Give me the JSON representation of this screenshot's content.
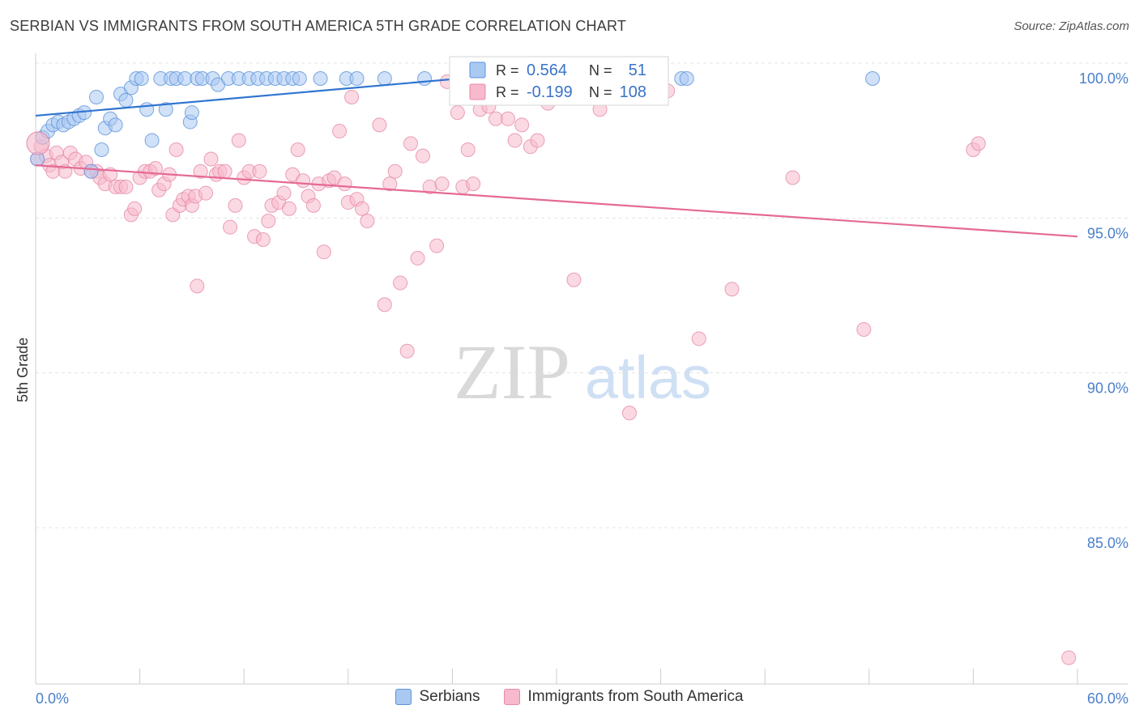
{
  "title": "SERBIAN VS IMMIGRANTS FROM SOUTH AMERICA 5TH GRADE CORRELATION CHART",
  "source": "Source: ZipAtlas.com",
  "watermark": {
    "zip": "ZIP",
    "atlas": "atlas"
  },
  "chart_data": {
    "type": "scatter",
    "xlabel": "",
    "ylabel": "5th Grade",
    "xlim": [
      0,
      60
    ],
    "ylim": [
      80.8,
      100.8
    ],
    "x_tick_labels": [
      {
        "value": 0,
        "label": "0.0%"
      },
      {
        "value": 60,
        "label": "60.0%"
      }
    ],
    "y_tick_labels": [
      {
        "value": 100,
        "label": "100.0%"
      },
      {
        "value": 95,
        "label": "95.0%"
      },
      {
        "value": 90,
        "label": "90.0%"
      },
      {
        "value": 85,
        "label": "85.0%"
      }
    ],
    "grid": true,
    "legend_box": [
      {
        "r_label": "R =",
        "r_value": "0.564",
        "n_label": "N =",
        "n_value": "51",
        "fill": "#a9c9f3",
        "stroke": "#5b93d9"
      },
      {
        "r_label": "R =",
        "r_value": "-0.199",
        "n_label": "N =",
        "n_value": "108",
        "fill": "#f7b9cc",
        "stroke": "#e58aa8"
      }
    ],
    "series": [
      {
        "name": "Serbians",
        "color_fill": "#a9c9f3",
        "color_stroke": "#5b93d9",
        "trend_color": "#2f74d0",
        "trend": {
          "x": [
            0,
            26.5
          ],
          "y": [
            98.8,
            100.1
          ]
        },
        "points": [
          [
            0.1,
            97.4
          ],
          [
            0.4,
            98.1
          ],
          [
            0.7,
            98.3
          ],
          [
            1.0,
            98.5
          ],
          [
            1.3,
            98.6
          ],
          [
            1.6,
            98.5
          ],
          [
            1.9,
            98.6
          ],
          [
            2.2,
            98.7
          ],
          [
            2.5,
            98.8
          ],
          [
            2.8,
            98.9
          ],
          [
            3.2,
            97.0
          ],
          [
            3.5,
            99.4
          ],
          [
            3.8,
            97.7
          ],
          [
            4.0,
            98.4
          ],
          [
            4.3,
            98.7
          ],
          [
            4.6,
            98.5
          ],
          [
            4.9,
            99.5
          ],
          [
            5.2,
            99.3
          ],
          [
            5.5,
            99.7
          ],
          [
            5.8,
            100.0
          ],
          [
            6.1,
            100.0
          ],
          [
            6.4,
            99.0
          ],
          [
            6.7,
            98.0
          ],
          [
            7.2,
            100.0
          ],
          [
            7.5,
            99.0
          ],
          [
            7.8,
            100.0
          ],
          [
            8.1,
            100.0
          ],
          [
            8.6,
            100.0
          ],
          [
            8.9,
            98.6
          ],
          [
            9.0,
            98.9
          ],
          [
            9.3,
            100.0
          ],
          [
            9.6,
            100.0
          ],
          [
            10.2,
            100.0
          ],
          [
            10.5,
            99.8
          ],
          [
            11.1,
            100.0
          ],
          [
            11.7,
            100.0
          ],
          [
            12.3,
            100.0
          ],
          [
            12.8,
            100.0
          ],
          [
            13.3,
            100.0
          ],
          [
            13.8,
            100.0
          ],
          [
            14.3,
            100.0
          ],
          [
            14.8,
            100.0
          ],
          [
            15.2,
            100.0
          ],
          [
            16.4,
            100.0
          ],
          [
            17.9,
            100.0
          ],
          [
            18.5,
            100.0
          ],
          [
            20.1,
            100.0
          ],
          [
            22.4,
            100.0
          ],
          [
            37.2,
            100.0
          ],
          [
            37.5,
            100.0
          ],
          [
            48.2,
            100.0
          ]
        ]
      },
      {
        "name": "Immigrants from South America",
        "color_fill": "#f7b9cc",
        "color_stroke": "#e58aa8",
        "trend_color": "#e56a94",
        "trend": {
          "x": [
            0,
            60
          ],
          "y": [
            97.2,
            94.9
          ]
        },
        "points": [
          [
            0.1,
            97.4
          ],
          [
            0.3,
            97.8
          ],
          [
            0.6,
            97.5
          ],
          [
            0.8,
            97.2
          ],
          [
            1.0,
            97.0
          ],
          [
            1.2,
            97.6
          ],
          [
            1.5,
            97.3
          ],
          [
            1.7,
            97.0
          ],
          [
            2.0,
            97.6
          ],
          [
            2.3,
            97.4
          ],
          [
            2.6,
            97.1
          ],
          [
            2.9,
            97.3
          ],
          [
            3.2,
            97.0
          ],
          [
            3.5,
            97.0
          ],
          [
            3.7,
            96.8
          ],
          [
            4.0,
            96.6
          ],
          [
            4.3,
            96.9
          ],
          [
            4.6,
            96.5
          ],
          [
            4.9,
            96.5
          ],
          [
            5.2,
            96.5
          ],
          [
            5.5,
            95.6
          ],
          [
            5.7,
            95.8
          ],
          [
            6.0,
            96.8
          ],
          [
            6.3,
            97.0
          ],
          [
            6.6,
            97.0
          ],
          [
            6.9,
            97.1
          ],
          [
            7.1,
            96.4
          ],
          [
            7.4,
            96.6
          ],
          [
            7.7,
            96.9
          ],
          [
            7.9,
            95.6
          ],
          [
            8.1,
            97.7
          ],
          [
            8.3,
            95.9
          ],
          [
            8.5,
            96.1
          ],
          [
            8.8,
            96.2
          ],
          [
            9.0,
            95.9
          ],
          [
            9.2,
            96.2
          ],
          [
            9.3,
            93.3
          ],
          [
            9.5,
            97.0
          ],
          [
            9.8,
            96.3
          ],
          [
            10.1,
            97.4
          ],
          [
            10.4,
            96.9
          ],
          [
            10.6,
            97.0
          ],
          [
            10.9,
            97.0
          ],
          [
            11.2,
            95.2
          ],
          [
            11.5,
            95.9
          ],
          [
            11.7,
            98.0
          ],
          [
            12.0,
            96.8
          ],
          [
            12.3,
            97.0
          ],
          [
            12.6,
            94.9
          ],
          [
            12.9,
            97.0
          ],
          [
            13.1,
            94.8
          ],
          [
            13.4,
            95.4
          ],
          [
            13.6,
            95.9
          ],
          [
            14.0,
            96.0
          ],
          [
            14.3,
            96.3
          ],
          [
            14.6,
            95.8
          ],
          [
            14.8,
            96.9
          ],
          [
            15.1,
            97.7
          ],
          [
            15.4,
            96.7
          ],
          [
            15.7,
            96.2
          ],
          [
            16.0,
            95.9
          ],
          [
            16.3,
            96.6
          ],
          [
            16.6,
            94.4
          ],
          [
            16.9,
            96.7
          ],
          [
            17.2,
            96.8
          ],
          [
            17.5,
            98.3
          ],
          [
            17.8,
            96.6
          ],
          [
            18.0,
            96.0
          ],
          [
            18.2,
            99.4
          ],
          [
            18.5,
            96.1
          ],
          [
            18.8,
            95.8
          ],
          [
            19.1,
            95.4
          ],
          [
            19.8,
            98.5
          ],
          [
            20.1,
            92.7
          ],
          [
            20.4,
            96.6
          ],
          [
            20.7,
            97.0
          ],
          [
            21.0,
            93.4
          ],
          [
            21.4,
            91.2
          ],
          [
            21.6,
            97.9
          ],
          [
            22.0,
            94.2
          ],
          [
            22.3,
            97.5
          ],
          [
            22.7,
            96.5
          ],
          [
            23.1,
            94.6
          ],
          [
            23.4,
            96.6
          ],
          [
            23.7,
            99.9
          ],
          [
            24.3,
            98.9
          ],
          [
            24.6,
            96.5
          ],
          [
            24.9,
            97.7
          ],
          [
            25.2,
            96.6
          ],
          [
            25.6,
            99.0
          ],
          [
            26.1,
            99.1
          ],
          [
            26.5,
            98.7
          ],
          [
            27.2,
            98.7
          ],
          [
            27.6,
            98.0
          ],
          [
            28.0,
            98.5
          ],
          [
            28.5,
            97.8
          ],
          [
            28.9,
            98.0
          ],
          [
            29.5,
            99.2
          ],
          [
            31.0,
            93.5
          ],
          [
            32.5,
            99.0
          ],
          [
            34.2,
            89.2
          ],
          [
            35.1,
            99.9
          ],
          [
            36.4,
            99.6
          ],
          [
            38.2,
            91.6
          ],
          [
            40.1,
            93.2
          ],
          [
            43.6,
            96.8
          ],
          [
            47.7,
            91.9
          ],
          [
            54.0,
            97.7
          ],
          [
            54.3,
            97.9
          ],
          [
            59.5,
            81.3
          ]
        ]
      }
    ]
  }
}
